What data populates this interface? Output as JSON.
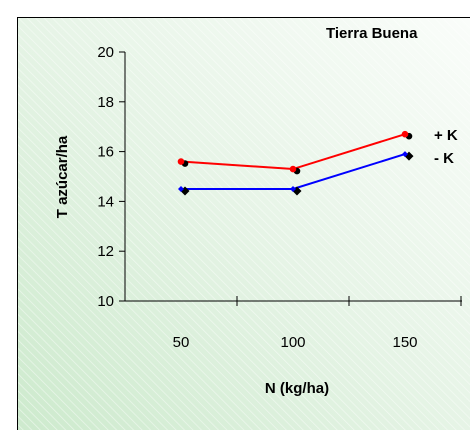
{
  "chart_data": {
    "type": "line",
    "title": "Tierra Buena",
    "xlabel": "N (kg/ha)",
    "ylabel": "T azúcar/ha",
    "x": [
      50,
      100,
      150
    ],
    "x_ticks": [
      "50",
      "100",
      "150"
    ],
    "ylim": [
      10,
      20
    ],
    "y_ticks": [
      "10",
      "12",
      "14",
      "16",
      "18",
      "20"
    ],
    "series": [
      {
        "name": "+ K",
        "values": [
          15.6,
          15.3,
          16.7
        ],
        "color": "#ff0000"
      },
      {
        "name": "- K",
        "values": [
          14.5,
          14.5,
          15.9
        ],
        "color": "#0000ff"
      }
    ],
    "legend": "right",
    "grid": false
  }
}
